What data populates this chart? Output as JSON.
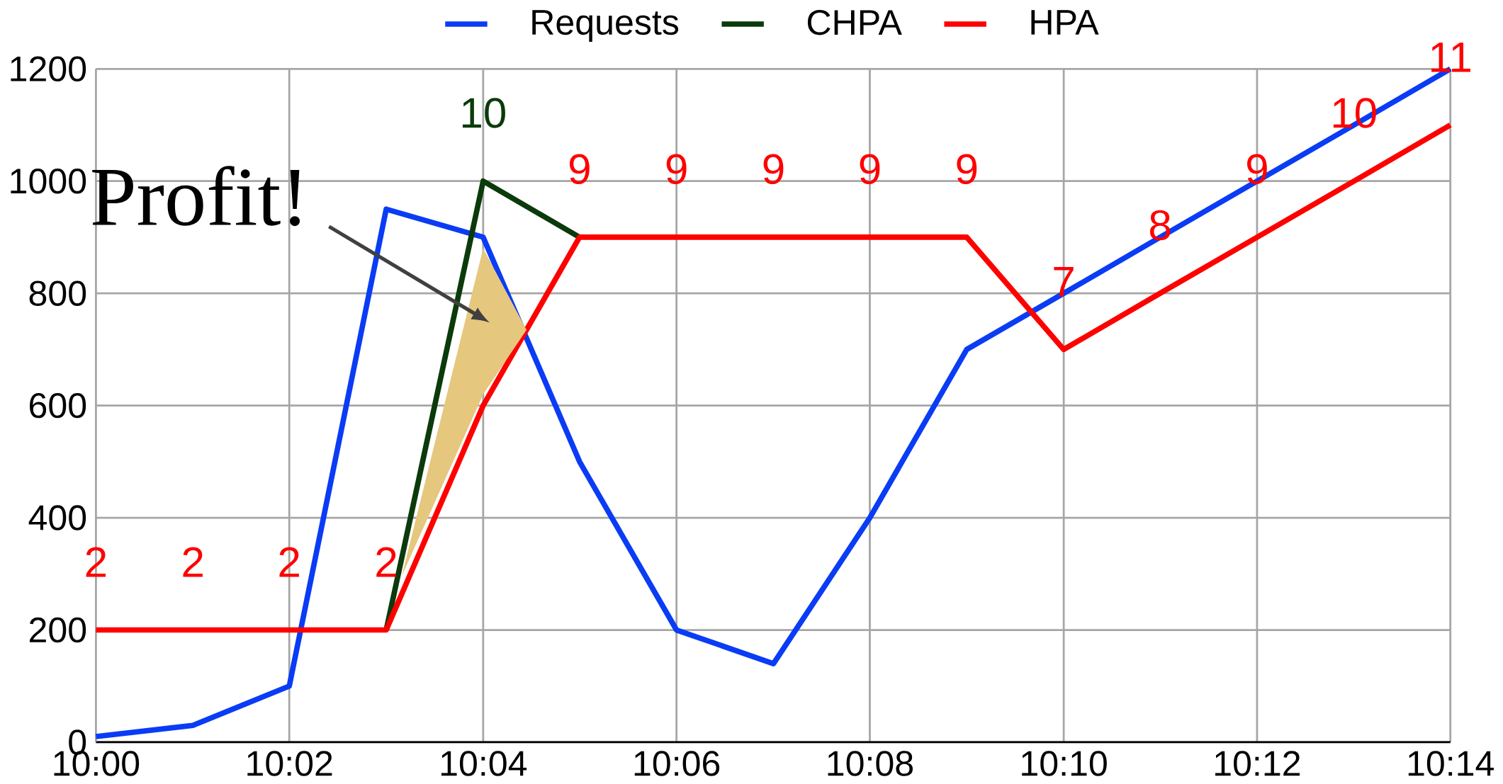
{
  "chart_data": {
    "type": "line",
    "x": [
      10,
      10.0167,
      10.0333,
      10.05,
      10.0667,
      10.0833,
      10.1,
      10.1167,
      10.1333,
      10.15,
      10.1667,
      10.1833,
      10.2,
      10.2167,
      10.2333
    ],
    "series": [
      {
        "name": "Requests",
        "color": "#0a3cf5",
        "values": [
          10,
          30,
          100,
          950,
          900,
          500,
          200,
          140,
          400,
          700,
          800,
          900,
          1000,
          1100,
          1200
        ]
      },
      {
        "name": "CHPA",
        "color": "#0b3a0b",
        "x": [
          10.05,
          10.0667,
          10.0833
        ],
        "values": [
          200,
          1000,
          900
        ]
      },
      {
        "name": "HPA",
        "color": "#ff0000",
        "values": [
          200,
          200,
          200,
          200,
          600,
          900,
          900,
          900,
          900,
          900,
          700,
          800,
          900,
          1000,
          1100
        ]
      }
    ],
    "xlim": [
      10,
      10.2333
    ],
    "xticks": [
      {
        "value": 10,
        "label": "10:00"
      },
      {
        "value": 10.0333,
        "label": "10:02"
      },
      {
        "value": 10.0667,
        "label": "10:04"
      },
      {
        "value": 10.1,
        "label": "10:06"
      },
      {
        "value": 10.1333,
        "label": "10:08"
      },
      {
        "value": 10.1667,
        "label": "10:10"
      },
      {
        "value": 10.2,
        "label": "10:12"
      },
      {
        "value": 10.2333,
        "label": "10:14"
      }
    ],
    "ylim": [
      0,
      1200
    ],
    "yticks": [
      0,
      200,
      400,
      600,
      800,
      1000,
      1200
    ],
    "annotations": [
      "Profit!",
      {
        "text": "2",
        "x": 10,
        "y": 200
      },
      {
        "text": "2",
        "x": 10.0167,
        "y": 200
      },
      {
        "text": "2",
        "x": 10.0333,
        "y": 200
      },
      {
        "text": "2",
        "x": 10.05,
        "y": 200
      },
      {
        "text": "10",
        "x": 10.0667,
        "y": 1000
      },
      {
        "text": "9",
        "x": 10.0833,
        "y": 900
      },
      {
        "text": "9",
        "x": 10.1,
        "y": 900
      },
      {
        "text": "9",
        "x": 10.1167,
        "y": 900
      },
      {
        "text": "9",
        "x": 10.1333,
        "y": 900
      },
      {
        "text": "9",
        "x": 10.15,
        "y": 900
      },
      {
        "text": "7",
        "x": 10.1667,
        "y": 700
      },
      {
        "text": "8",
        "x": 10.1833,
        "y": 800
      },
      {
        "text": "9",
        "x": 10.2,
        "y": 900
      },
      {
        "text": "10",
        "x": 10.2167,
        "y": 1000
      },
      {
        "text": "11",
        "x": 10.2333,
        "y": 1100
      }
    ],
    "grid": true,
    "legend": "top",
    "marker": "none",
    "line_style": "solid"
  }
}
